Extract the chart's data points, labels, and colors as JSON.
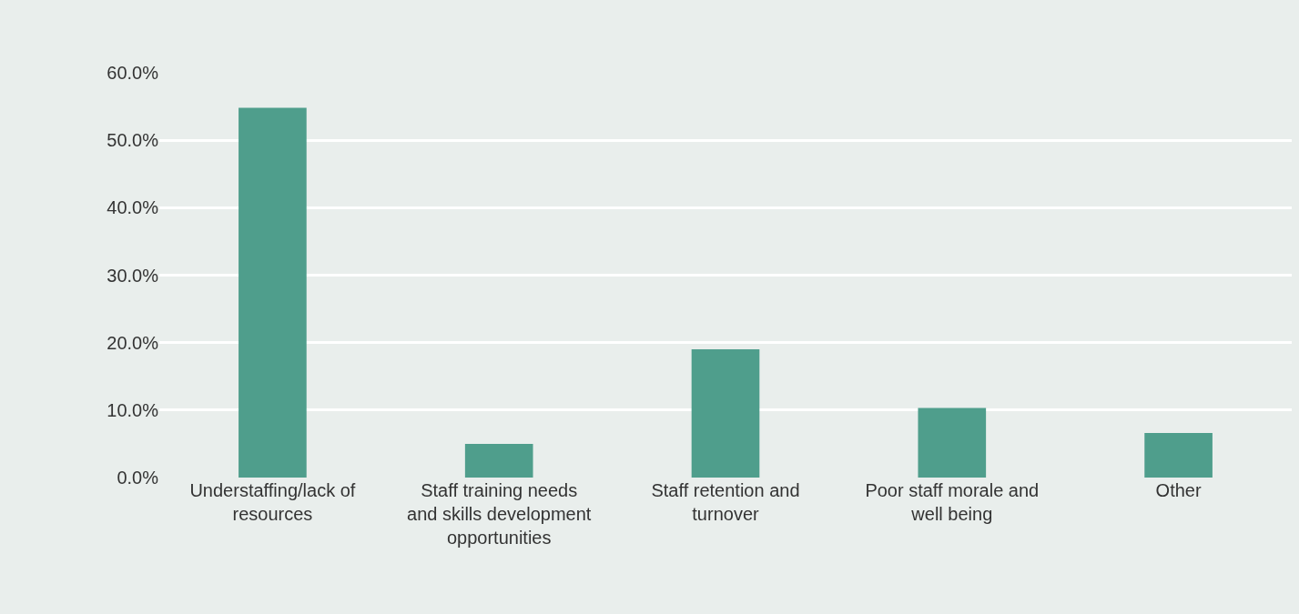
{
  "chart_data": {
    "type": "bar",
    "categories": [
      "Understaffing/lack of resources",
      "Staff training needs and skills development opportunities",
      "Staff retention and turnover",
      "Poor staff morale and well being",
      "Other"
    ],
    "values": [
      54.8,
      5.0,
      19.0,
      10.3,
      6.6
    ],
    "color": "#4f9e8c",
    "ylim": [
      0,
      60
    ],
    "yticks": [
      {
        "value": 0,
        "label": "0.0%"
      },
      {
        "value": 10,
        "label": "10.0%"
      },
      {
        "value": 20,
        "label": "20.0%"
      },
      {
        "value": 30,
        "label": "30.0%"
      },
      {
        "value": 40,
        "label": "40.0%"
      },
      {
        "value": 50,
        "label": "50.0%"
      },
      {
        "value": 60,
        "label": "60.0%"
      }
    ],
    "grid": "y"
  }
}
